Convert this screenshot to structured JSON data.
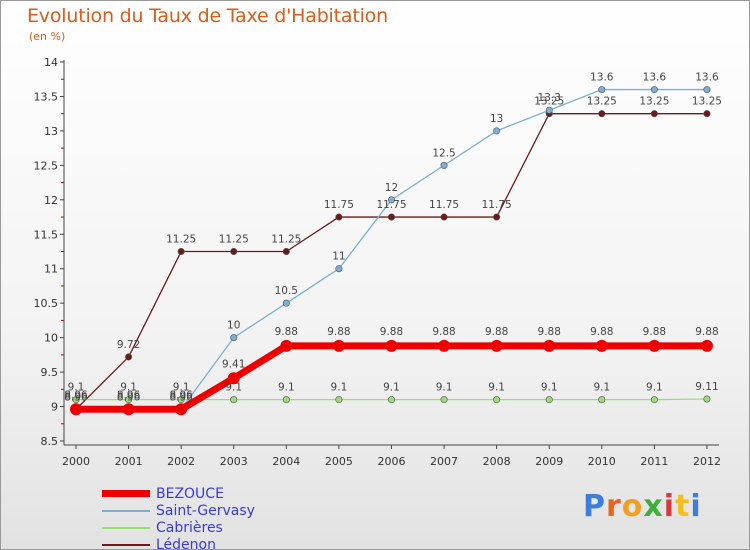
{
  "header": {
    "title": "Evolution du Taux de Taxe d'Habitation",
    "subtitle": "(en %)"
  },
  "brand": {
    "text": "Proxiti",
    "colors": [
      "#3d7fd6",
      "#e8651f",
      "#f0a020",
      "#3fae3f",
      "#d63a3a",
      "#f0c020",
      "#3d7fd6"
    ]
  },
  "chart_data": {
    "type": "line",
    "categories": [
      "2000",
      "2001",
      "2002",
      "2003",
      "2004",
      "2005",
      "2006",
      "2007",
      "2008",
      "2009",
      "2010",
      "2011",
      "2012"
    ],
    "ylim": [
      8.5,
      14
    ],
    "yticks": [
      "8.5",
      "9",
      "9.5",
      "10",
      "10.5",
      "11",
      "11.5",
      "12",
      "12.5",
      "13",
      "13.5",
      "14"
    ],
    "grid": false,
    "legend_position": "bottom-left",
    "series": [
      {
        "name": "Lédenon",
        "color": "#6b1a1a",
        "values": [
          8.96,
          9.72,
          11.25,
          11.25,
          11.25,
          11.75,
          11.75,
          11.75,
          11.75,
          13.25,
          13.25,
          13.25,
          13.25
        ],
        "labels": [
          "8.96",
          "9.72",
          "11.25",
          "11.25",
          "11.25",
          "11.75",
          "11.75",
          "11.75",
          "11.75",
          "13.25",
          "13.25",
          "13.25",
          "13.25"
        ]
      },
      {
        "name": "Saint-Gervasy",
        "color": "#7aaed6",
        "values": [
          8.96,
          8.96,
          8.96,
          10,
          10.5,
          11,
          12,
          12.5,
          13,
          13.3,
          13.6,
          13.6,
          13.6
        ],
        "labels": [
          "8.96",
          "8.96",
          "8.96",
          "10",
          "10.5",
          "11",
          "12",
          "12.5",
          "13",
          "13.3",
          "13.6",
          "13.6",
          "13.6"
        ]
      },
      {
        "name": "Cabrières",
        "color": "#99dd77",
        "values": [
          9.1,
          9.1,
          9.1,
          9.1,
          9.1,
          9.1,
          9.1,
          9.1,
          9.1,
          9.1,
          9.1,
          9.1,
          9.11
        ],
        "labels": [
          "9.1",
          "9.1",
          "9.1",
          "9.1",
          "9.1",
          "9.1",
          "9.1",
          "9.1",
          "9.1",
          "9.1",
          "9.1",
          "9.1",
          "9.11"
        ]
      },
      {
        "name": "BEZOUCE",
        "color": "#ee0000",
        "values": [
          8.96,
          8.96,
          8.96,
          9.41,
          9.88,
          9.88,
          9.88,
          9.88,
          9.88,
          9.88,
          9.88,
          9.88,
          9.88
        ],
        "labels": [
          "8.96",
          "8.96",
          "8.96",
          "9.41",
          "9.88",
          "9.88",
          "9.88",
          "9.88",
          "9.88",
          "9.88",
          "9.88",
          "9.88",
          "9.88"
        ]
      }
    ],
    "legend": [
      "BEZOUCE",
      "Saint-Gervasy",
      "Cabrières",
      "Lédenon"
    ]
  }
}
